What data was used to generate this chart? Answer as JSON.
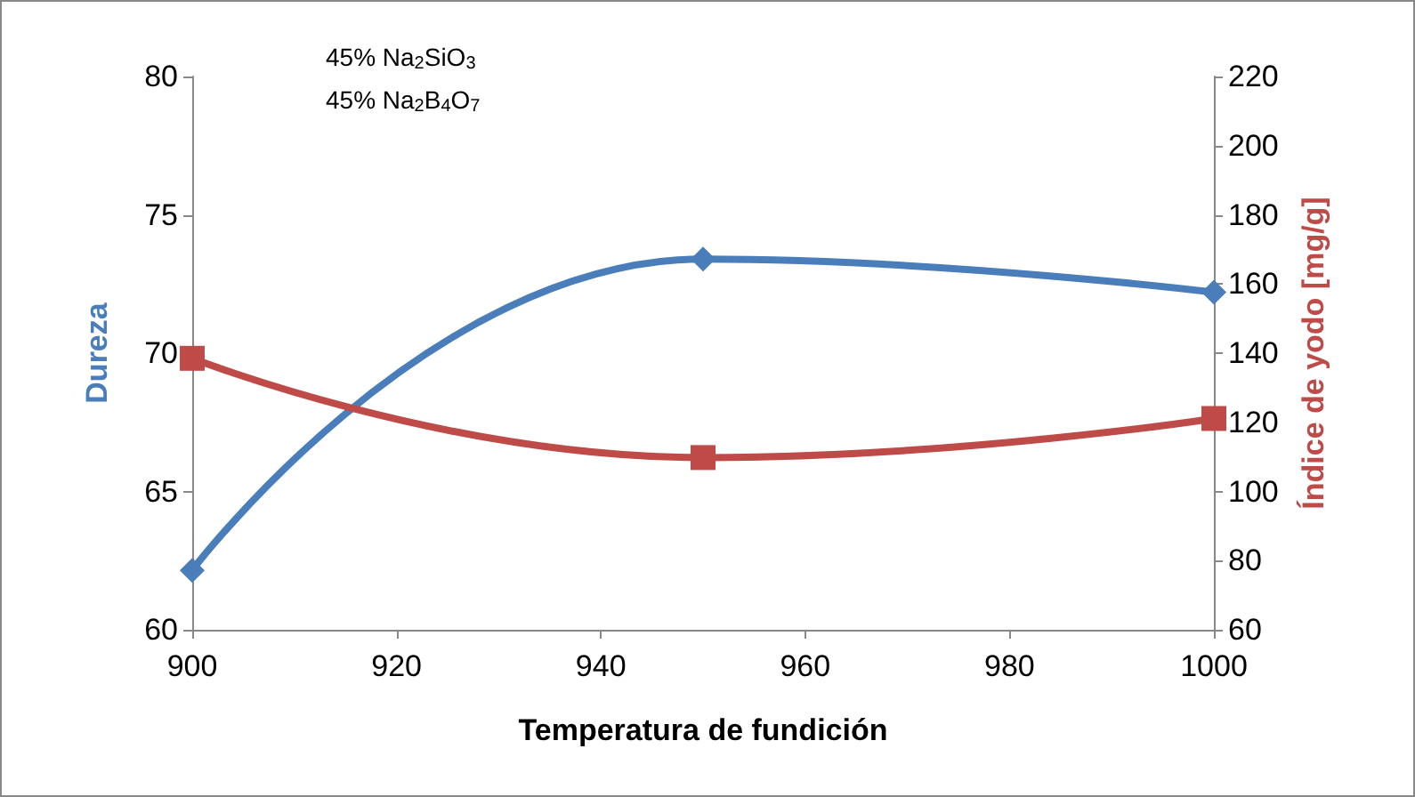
{
  "chart_data": {
    "type": "line",
    "xlabel": "Temperatura de fundición",
    "ylabel": "Dureza",
    "y2label": "Índice de yodo [mg/g]",
    "x": [
      900,
      950,
      1000
    ],
    "series": [
      {
        "color": "#4a7ebb",
        "values": [
          62.15,
          73.4,
          72.2
        ],
        "marker": "diamond"
      },
      {
        "color": "#be4b48",
        "values": [
          138.5,
          109.8,
          121.1
        ],
        "marker": "square",
        "axis": "y2"
      }
    ],
    "xlim": [
      900,
      1000
    ],
    "xticks": [
      900,
      920,
      940,
      960,
      980,
      1000
    ],
    "ylim": [
      60,
      80
    ],
    "yticks": [
      60,
      65,
      70,
      75,
      80
    ],
    "y2lim": [
      60,
      220
    ],
    "y2ticks": [
      60,
      80,
      100,
      120,
      140,
      160,
      180,
      200,
      220
    ],
    "annotations": [
      "45% Na$_{2}$SiO$_{3}$",
      "45% Na$_{2}$B$_{4}$O$_{7}$"
    ],
    "grid": false
  }
}
